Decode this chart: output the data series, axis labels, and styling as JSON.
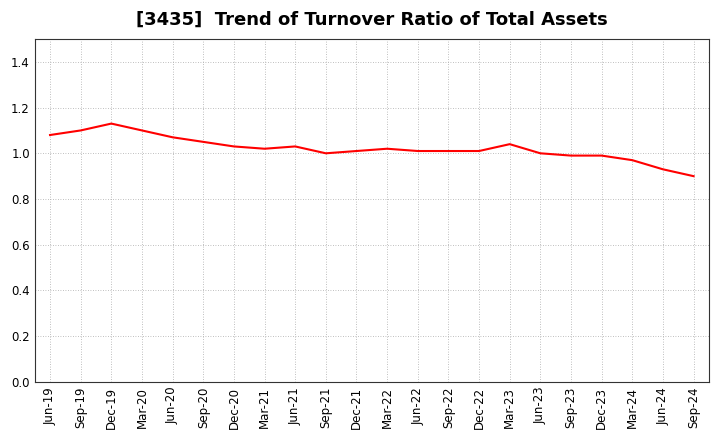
{
  "title": "[3435]  Trend of Turnover Ratio of Total Assets",
  "x_labels": [
    "Jun-19",
    "Sep-19",
    "Dec-19",
    "Mar-20",
    "Jun-20",
    "Sep-20",
    "Dec-20",
    "Mar-21",
    "Jun-21",
    "Sep-21",
    "Dec-21",
    "Mar-22",
    "Jun-22",
    "Sep-22",
    "Dec-22",
    "Mar-23",
    "Jun-23",
    "Sep-23",
    "Dec-23",
    "Mar-24",
    "Jun-24",
    "Sep-24"
  ],
  "values": [
    1.08,
    1.1,
    1.13,
    1.1,
    1.07,
    1.05,
    1.03,
    1.02,
    1.03,
    1.0,
    1.01,
    1.02,
    1.01,
    1.01,
    1.01,
    1.04,
    1.0,
    0.99,
    0.99,
    0.97,
    0.93,
    0.9
  ],
  "line_color": "#ff0000",
  "line_width": 1.5,
  "ylim": [
    0.0,
    1.5
  ],
  "yticks": [
    0.0,
    0.2,
    0.4,
    0.6,
    0.8,
    1.0,
    1.2,
    1.4
  ],
  "grid_color": "#aaaaaa",
  "background_color": "#ffffff",
  "title_fontsize": 13,
  "tick_fontsize": 8.5
}
